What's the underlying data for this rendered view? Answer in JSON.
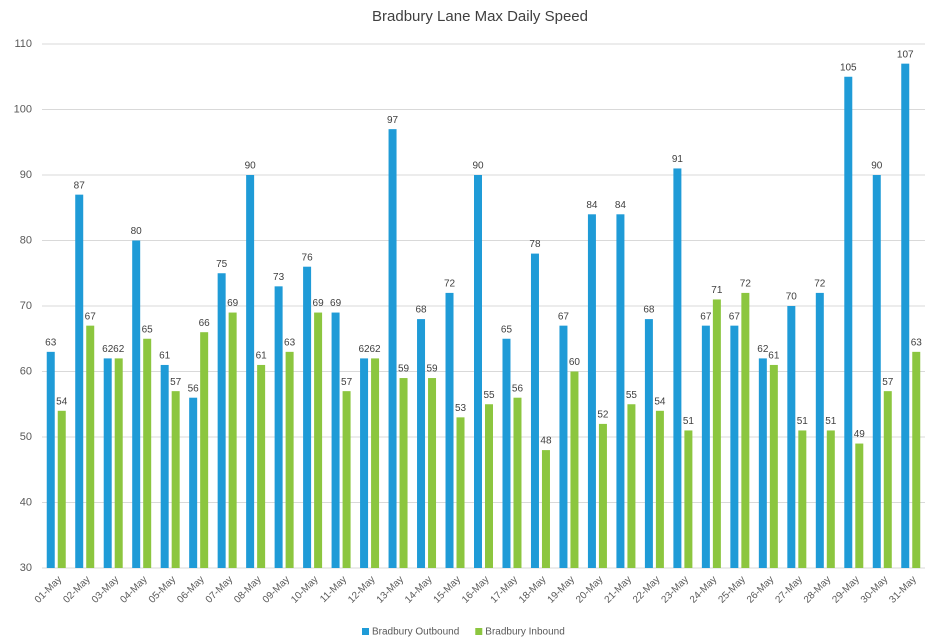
{
  "chart_data": {
    "type": "bar",
    "title": "Bradbury Lane Max Daily Speed",
    "categories": [
      "01-May",
      "02-May",
      "03-May",
      "04-May",
      "05-May",
      "06-May",
      "07-May",
      "08-May",
      "09-May",
      "10-May",
      "11-May",
      "12-May",
      "13-May",
      "14-May",
      "15-May",
      "16-May",
      "17-May",
      "18-May",
      "19-May",
      "20-May",
      "21-May",
      "22-May",
      "23-May",
      "24-May",
      "25-May",
      "26-May",
      "27-May",
      "28-May",
      "29-May",
      "30-May",
      "31-May"
    ],
    "series": [
      {
        "name": "Bradbury Outbound",
        "color": "#1f9bd7",
        "values": [
          63,
          87,
          62,
          80,
          61,
          56,
          75,
          90,
          73,
          76,
          69,
          62,
          97,
          68,
          72,
          90,
          65,
          78,
          67,
          84,
          84,
          68,
          91,
          67,
          67,
          62,
          70,
          72,
          105,
          90,
          107
        ]
      },
      {
        "name": "Bradbury Inbound",
        "color": "#8cc63f",
        "values": [
          54,
          67,
          62,
          65,
          57,
          66,
          69,
          61,
          63,
          69,
          57,
          62,
          59,
          59,
          53,
          55,
          56,
          48,
          60,
          52,
          55,
          54,
          51,
          71,
          72,
          61,
          51,
          51,
          49,
          57,
          63
        ]
      }
    ],
    "ylim": [
      30,
      110
    ],
    "yticks": [
      30,
      40,
      50,
      60,
      70,
      80,
      90,
      100,
      110
    ],
    "grid": true,
    "legend": "bottom"
  }
}
